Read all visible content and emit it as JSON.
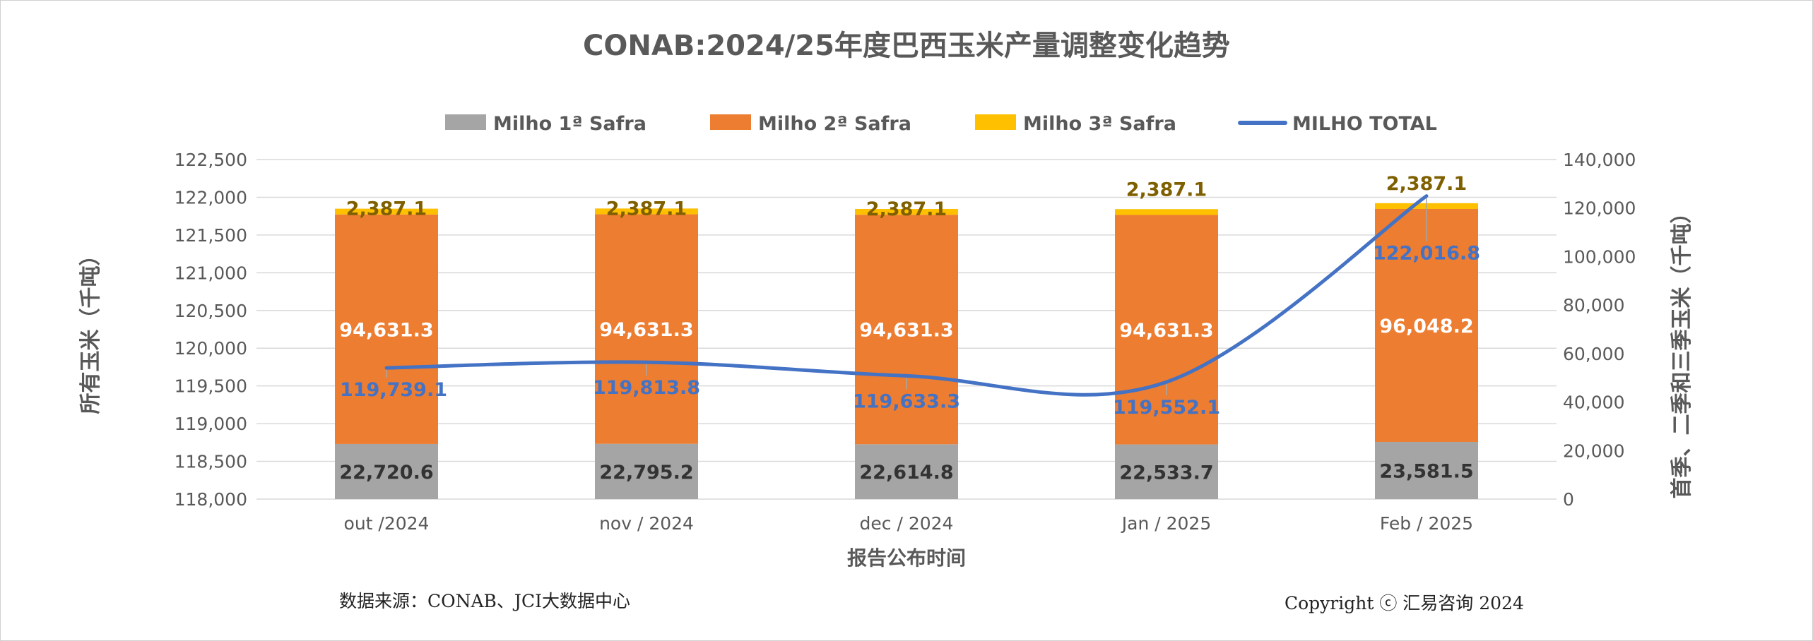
{
  "chart_data": {
    "type": "bar",
    "stacked": true,
    "title": "CONAB:2024/25年度巴西玉米产量调整变化趋势",
    "xlabel": "报告公布时间",
    "ylabel_left": "所有玉米（千吨）",
    "ylabel_right": "首季、二季和三季玉米（千吨）",
    "categories": [
      "out /2024",
      "nov / 2024",
      "dec / 2024",
      "Jan / 2025",
      "Feb / 2025"
    ],
    "left_axis": {
      "ylim": [
        118000,
        122500
      ],
      "ticks": [
        "118,000",
        "118,500",
        "119,000",
        "119,500",
        "120,000",
        "120,500",
        "121,000",
        "121,500",
        "122,000",
        "122,500"
      ]
    },
    "right_axis": {
      "ylim": [
        0,
        140000
      ],
      "ticks": [
        "0",
        "20,000",
        "40,000",
        "60,000",
        "80,000",
        "100,000",
        "120,000",
        "140,000"
      ]
    },
    "series": [
      {
        "name": "Milho 1ª Safra",
        "axis": "right",
        "kind": "bar",
        "values": [
          22720.6,
          22795.2,
          22614.8,
          22533.7,
          23581.5
        ],
        "labels": [
          "22,720.6",
          "22,795.2",
          "22,614.8",
          "22,533.7",
          "23,581.5"
        ]
      },
      {
        "name": "Milho 2ª Safra",
        "axis": "right",
        "kind": "bar",
        "values": [
          94631.3,
          94631.3,
          94631.3,
          94631.3,
          96048.2
        ],
        "labels": [
          "94,631.3",
          "94,631.3",
          "94,631.3",
          "94,631.3",
          "96,048.2"
        ]
      },
      {
        "name": "Milho 3ª Safra",
        "axis": "right",
        "kind": "bar",
        "values": [
          2387.1,
          2387.1,
          2387.1,
          2387.1,
          2387.1
        ],
        "labels": [
          "2,387.1",
          "2,387.1",
          "2,387.1",
          "2,387.1",
          "2,387.1"
        ]
      },
      {
        "name": "MILHO TOTAL",
        "axis": "left",
        "kind": "line",
        "values": [
          119739.1,
          119813.8,
          119633.3,
          119552.1,
          122016.8
        ],
        "labels": [
          "119,739.1",
          "119,813.8",
          "119,633.3",
          "119,552.1",
          "122,016.8"
        ]
      }
    ],
    "colors": {
      "bar1": "#a5a5a5",
      "bar2": "#ed7d31",
      "bar3": "#ffc000",
      "line": "#4472c4",
      "title": "#595959",
      "axis_text": "#595959",
      "bar3_label": "#7f6000",
      "grid": "#d9d9d9"
    },
    "legend_position": "top"
  },
  "footer": {
    "source": "数据来源：CONAB、JCI大数据中心",
    "copyright": "Copyright ⓒ 汇易咨询 2024"
  }
}
